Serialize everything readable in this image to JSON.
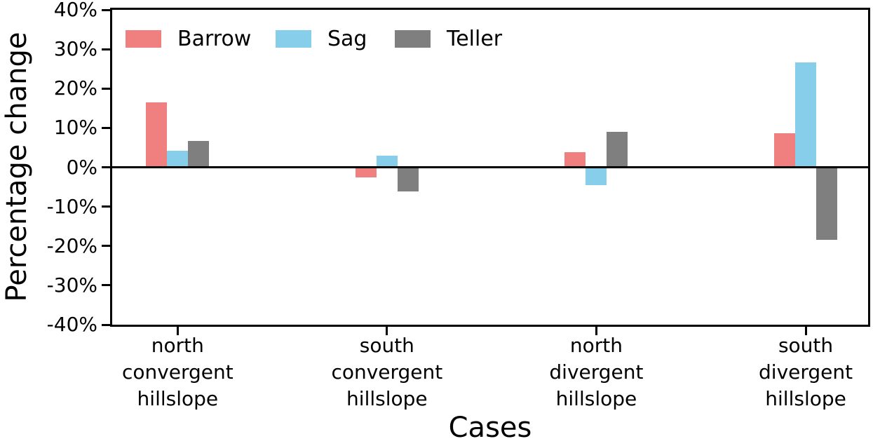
{
  "chart_data": {
    "type": "bar",
    "title": "",
    "xlabel": "Cases",
    "ylabel": "Percentage change",
    "categories": [
      {
        "lines": [
          "north",
          "convergent",
          "hillslope"
        ]
      },
      {
        "lines": [
          "south",
          "convergent",
          "hillslope"
        ]
      },
      {
        "lines": [
          "north",
          "divergent",
          "hillslope"
        ]
      },
      {
        "lines": [
          "south",
          "divergent",
          "hillslope"
        ]
      }
    ],
    "series": [
      {
        "name": "Barrow",
        "color": "#f08080",
        "values": [
          16.5,
          -2.6,
          3.8,
          8.6
        ]
      },
      {
        "name": "Sag",
        "color": "#87ceeb",
        "values": [
          4.2,
          3.0,
          -4.6,
          26.6
        ]
      },
      {
        "name": "Teller",
        "color": "#7f7f7f",
        "values": [
          6.6,
          -6.1,
          9.0,
          -18.4
        ]
      }
    ],
    "unit": "%",
    "ylim": [
      -40,
      40
    ],
    "y_tick_step": 10,
    "y_ticks": [
      "40%",
      "30%",
      "20%",
      "10%",
      "0%",
      "-10%",
      "-20%",
      "-30%",
      "-40%"
    ],
    "grid": false,
    "legend_position": "top-left-inside",
    "zero_baseline": true,
    "axis_color": "#000000",
    "text_color": "#000000",
    "background_color": "#ffffff"
  }
}
